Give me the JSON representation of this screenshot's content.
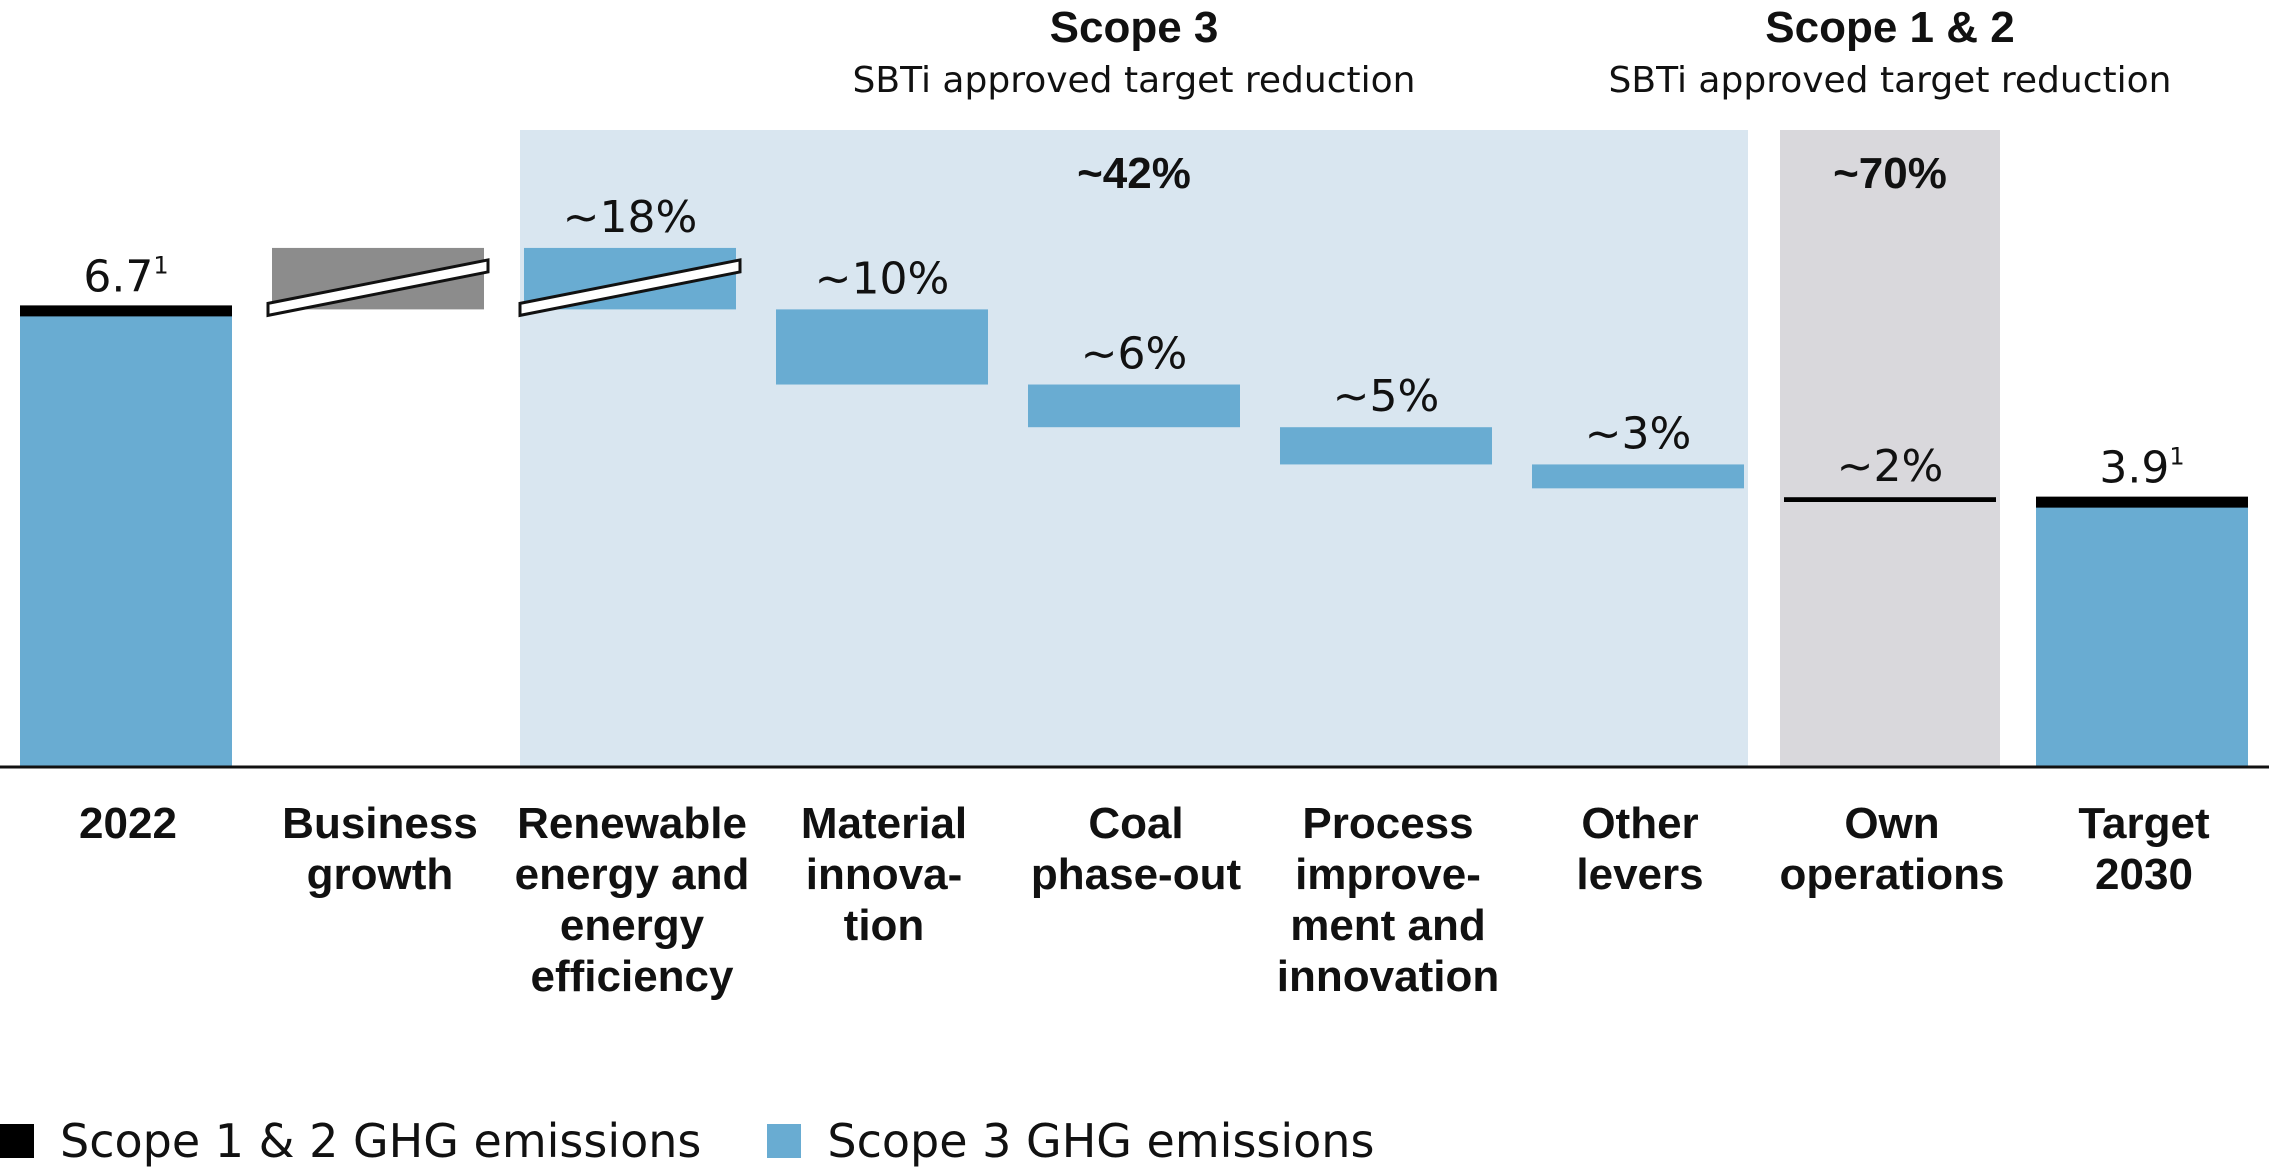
{
  "chart_data": {
    "type": "bar",
    "subtype": "waterfall",
    "categories": [
      "2022",
      "Business growth",
      "Renewable energy and energy efficiency",
      "Material innova-tion",
      "Coal phase-out",
      "Process improve-ment and innovation",
      "Other levers",
      "Own operations",
      "Target 2030"
    ],
    "category_lines": [
      [
        "2022"
      ],
      [
        "Business",
        "growth"
      ],
      [
        "Renewable",
        "energy and",
        "energy",
        "efficiency"
      ],
      [
        "Material",
        "innova-",
        "tion"
      ],
      [
        "Coal",
        "phase-out"
      ],
      [
        "Process",
        "improve-",
        "ment and",
        "innovation"
      ],
      [
        "Other",
        "levers"
      ],
      [
        "Own",
        "operations"
      ],
      [
        "Target",
        "2030"
      ]
    ],
    "steps": [
      {
        "kind": "total",
        "value": 6.7,
        "label": "6.7",
        "footnote": "1",
        "series": "Scope 3 GHG emissions",
        "has_scope12_cap": true
      },
      {
        "kind": "increase",
        "from": 6.7,
        "to": 7.6,
        "label": "",
        "color": "#8c8c8c",
        "broken": true
      },
      {
        "kind": "decrease",
        "from": 7.6,
        "to": 6.7,
        "label": "~18%",
        "series": "Scope 3 GHG emissions",
        "broken": true
      },
      {
        "kind": "decrease",
        "from": 6.7,
        "to": 5.6,
        "label": "~10%",
        "series": "Scope 3 GHG emissions"
      },
      {
        "kind": "decrease",
        "from": 5.6,
        "to": 4.975,
        "label": "~6%",
        "series": "Scope 3 GHG emissions"
      },
      {
        "kind": "decrease",
        "from": 4.975,
        "to": 4.43,
        "label": "~5%",
        "series": "Scope 3 GHG emissions"
      },
      {
        "kind": "decrease",
        "from": 4.43,
        "to": 4.08,
        "label": "~3%",
        "series": "Scope 3 GHG emissions"
      },
      {
        "kind": "decrease",
        "from": 3.95,
        "to": 3.88,
        "label": "~2%",
        "series": "Scope 1 & 2 GHG emissions"
      },
      {
        "kind": "total",
        "value": 3.9,
        "label": "3.9",
        "footnote": "1",
        "series": "Scope 3 GHG emissions",
        "has_scope12_cap": true
      }
    ],
    "ylim": [
      0,
      8.5
    ],
    "groups": [
      {
        "title": "Scope 3",
        "subtitle": "SBTi approved target reduction",
        "value_label": "~42%",
        "from_index": 2,
        "to_index": 6,
        "color": "#d9e6f0"
      },
      {
        "title": "Scope 1 & 2",
        "subtitle": "SBTi approved target reduction",
        "value_label": "~70%",
        "from_index": 7,
        "to_index": 7,
        "color": "#d9d8dc"
      }
    ],
    "legend": [
      {
        "name": "Scope 1 & 2 GHG emissions",
        "color": "#000000"
      },
      {
        "name": "Scope 3 GHG emissions",
        "color": "#69acd2"
      }
    ],
    "legend_position": "bottom-left",
    "grid": false,
    "title": "",
    "xlabel": "",
    "ylabel": ""
  }
}
